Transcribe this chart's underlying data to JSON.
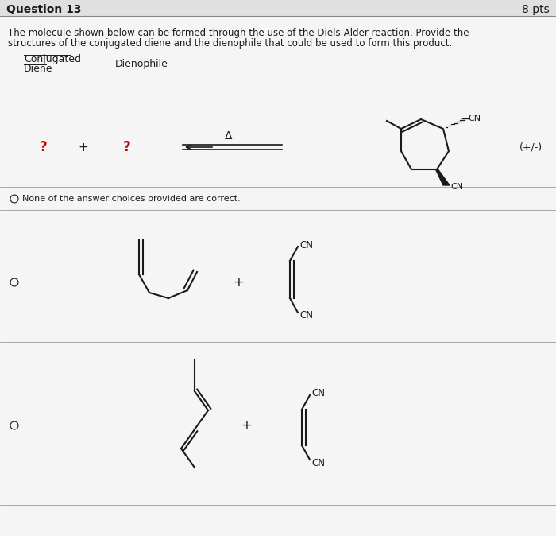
{
  "bg_color": "#f5f5f5",
  "header_bg": "#e8e8e8",
  "title_left": "Question 13",
  "title_right": "8 pts",
  "question_line1": "The molecule shown below can be formed through the use of the Diels-Alder reaction. Provide the",
  "question_line2": "structures of the conjugated diene and the dienophile that could be used to form this product.",
  "qmark_color": "#cc0000",
  "text_color": "#1a1a1a",
  "line_color": "#1a1a1a",
  "divider_color": "#999999",
  "header_line_color": "#888888"
}
